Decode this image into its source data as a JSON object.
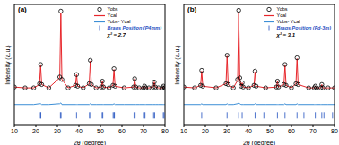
{
  "chart_data": [
    {
      "type": "line",
      "title": "(a)",
      "x_label": "2θ (degree)",
      "y_label": "Intensity (a.u.)",
      "x": [
        10,
        15,
        19,
        21.7,
        22.2,
        22.7,
        26,
        31.1,
        31.6,
        32.1,
        35,
        38.4,
        38.9,
        39.4,
        42,
        44.8,
        45.3,
        45.8,
        48,
        50.4,
        50.9,
        51.4,
        54,
        55.8,
        56.3,
        56.8,
        61,
        65.4,
        65.9,
        66.4,
        68,
        70,
        70.5,
        71,
        72.5,
        74.5,
        75,
        75.5,
        77,
        78.8,
        79.3,
        79.8,
        80
      ],
      "series": [
        {
          "name": "Yobs",
          "type": "scatter",
          "marker": "circle",
          "color": "#000000",
          "values": [
            6,
            5,
            5,
            10,
            33,
            9,
            5,
            18,
            97,
            15,
            5,
            8,
            21,
            7,
            5,
            10,
            38,
            9,
            5,
            6,
            13,
            6,
            5,
            8,
            28,
            7,
            5,
            6,
            16,
            6,
            5,
            5,
            7,
            5,
            5,
            6,
            12,
            6,
            5,
            5,
            7,
            5,
            5
          ]
        },
        {
          "name": "Ycal",
          "type": "line",
          "color": "#e8262b",
          "values": [
            6,
            5,
            5,
            9,
            32,
            9,
            5,
            17,
            95,
            15,
            5,
            8,
            21,
            7,
            5,
            10,
            37,
            9,
            5,
            6,
            13,
            6,
            5,
            8,
            27,
            7,
            5,
            6,
            16,
            6,
            5,
            5,
            7,
            5,
            5,
            6,
            12,
            6,
            5,
            5,
            7,
            5,
            5
          ]
        },
        {
          "name": "Yobs- Ycal",
          "type": "line",
          "color": "#3d8fd6",
          "values": [
            -15,
            -15,
            -15,
            -14,
            -14,
            -15,
            -15,
            -14,
            -13,
            -15,
            -15,
            -15,
            -15,
            -15,
            -15,
            -15,
            -14,
            -15,
            -15,
            -15,
            -15,
            -15,
            -15,
            -15,
            -14,
            -15,
            -15,
            -15,
            -15,
            -15,
            -15,
            -15,
            -15,
            -15,
            -15,
            -15,
            -15,
            -15,
            -15,
            -15,
            -15,
            -15,
            -15
          ]
        },
        {
          "name": "Brags Position (P4mm)",
          "type": "scatter",
          "marker": "tick",
          "color": "#1f4fbf",
          "x": [
            22.1,
            22.3,
            31.4,
            31.7,
            38.9,
            44.9,
            45.4,
            50.8,
            51.1,
            55.9,
            56.3,
            56.5,
            65.6,
            66.1,
            70.4,
            70.7,
            74.7,
            75.2,
            79.2,
            79.6
          ],
          "values": [
            -28,
            -28,
            -28,
            -28,
            -28,
            -28,
            -28,
            -28,
            -28,
            -28,
            -28,
            -28,
            -28,
            -28,
            -28,
            -28,
            -28,
            -28,
            -28,
            -28
          ]
        }
      ],
      "xlim": [
        10,
        80
      ],
      "xticks": [
        10,
        20,
        30,
        40,
        50,
        60,
        70,
        80
      ],
      "ylim": [
        -40,
        105
      ],
      "yticks": [],
      "tick_labels": "x",
      "legend": "upper right",
      "annotations": [
        "χ² = 2.7"
      ]
    },
    {
      "type": "line",
      "title": "(b)",
      "x_label": "2θ (degree)",
      "y_label": "Intensity (a.u.)",
      "x": [
        10,
        15,
        17.8,
        18.3,
        18.8,
        25,
        29.6,
        30.1,
        30.6,
        33,
        35,
        35.5,
        36,
        36.6,
        37.1,
        37.6,
        40,
        42.6,
        43.1,
        43.6,
        48,
        53,
        53.5,
        54,
        56.5,
        57,
        57.5,
        60,
        62.1,
        62.6,
        63.1,
        68,
        70.6,
        71.1,
        71.6,
        73.6,
        74.1,
        74.6,
        77,
        80
      ],
      "series": [
        {
          "name": "Yobs",
          "type": "scatter",
          "marker": "circle",
          "color": "#000000",
          "values": [
            6,
            5,
            8,
            26,
            7,
            5,
            10,
            44,
            9,
            5,
            15,
            98,
            17,
            7,
            11,
            6,
            5,
            8,
            25,
            7,
            5,
            6,
            13,
            6,
            9,
            33,
            8,
            5,
            10,
            41,
            9,
            5,
            5,
            7,
            5,
            5,
            9,
            5,
            5,
            5
          ]
        },
        {
          "name": "Ycal",
          "type": "line",
          "color": "#e8262b",
          "values": [
            6,
            5,
            8,
            25,
            7,
            5,
            10,
            43,
            9,
            5,
            14,
            96,
            16,
            7,
            11,
            6,
            5,
            8,
            24,
            7,
            5,
            6,
            13,
            6,
            9,
            32,
            8,
            5,
            10,
            40,
            9,
            5,
            5,
            7,
            5,
            5,
            9,
            5,
            5,
            5
          ]
        },
        {
          "name": "Yobs- Ycal",
          "type": "line",
          "color": "#3d8fd6",
          "values": [
            -15,
            -15,
            -15,
            -14,
            -15,
            -15,
            -15,
            -14,
            -15,
            -15,
            -14,
            -13,
            -14,
            -15,
            -15,
            -15,
            -15,
            -15,
            -14,
            -15,
            -15,
            -15,
            -15,
            -15,
            -15,
            -14,
            -15,
            -15,
            -15,
            -14,
            -15,
            -15,
            -15,
            -15,
            -15,
            -15,
            -15,
            -15,
            -15,
            -15
          ]
        },
        {
          "name": "Brags Position (Fd-3m)",
          "type": "scatter",
          "marker": "tick",
          "color": "#1f4fbf",
          "x": [
            18.3,
            30.1,
            35.5,
            37.1,
            43.1,
            47.2,
            53.5,
            57.0,
            62.6,
            65.8,
            71.1,
            74.1,
            75.1,
            79.1
          ],
          "values": [
            -28,
            -28,
            -28,
            -28,
            -28,
            -28,
            -28,
            -28,
            -28,
            -28,
            -28,
            -28,
            -28,
            -28
          ]
        }
      ],
      "xlim": [
        10,
        80
      ],
      "xticks": [
        10,
        20,
        30,
        40,
        50,
        60,
        70,
        80
      ],
      "ylim": [
        -40,
        105
      ],
      "yticks": [],
      "tick_labels": "x",
      "legend": "upper right",
      "annotations": [
        "χ² = 3.1"
      ]
    }
  ]
}
